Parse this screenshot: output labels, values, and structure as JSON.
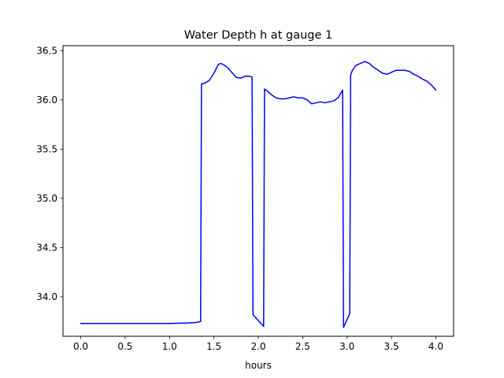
{
  "chart_data": {
    "type": "line",
    "title": "Water Depth h at gauge 1",
    "xlabel": "hours",
    "ylabel": "",
    "xlim": [
      -0.2,
      4.2
    ],
    "ylim": [
      33.6,
      36.55
    ],
    "xticks": [
      0.0,
      0.5,
      1.0,
      1.5,
      2.0,
      2.5,
      3.0,
      3.5,
      4.0
    ],
    "xtick_labels": [
      "0.0",
      "0.5",
      "1.0",
      "1.5",
      "2.0",
      "2.5",
      "3.0",
      "3.5",
      "4.0"
    ],
    "yticks": [
      34.0,
      34.5,
      35.0,
      35.5,
      36.0,
      36.5
    ],
    "ytick_labels": [
      "34.0",
      "34.5",
      "35.0",
      "35.5",
      "36.0",
      "36.5"
    ],
    "grid": false,
    "series": [
      {
        "color": "#0000ff",
        "x": [
          0.0,
          0.5,
          1.0,
          1.2,
          1.3,
          1.35,
          1.36,
          1.4,
          1.45,
          1.5,
          1.55,
          1.58,
          1.62,
          1.65,
          1.7,
          1.75,
          1.8,
          1.85,
          1.9,
          1.93,
          1.94,
          2.06,
          2.07,
          2.1,
          2.15,
          2.2,
          2.25,
          2.3,
          2.35,
          2.4,
          2.45,
          2.5,
          2.55,
          2.6,
          2.65,
          2.7,
          2.75,
          2.8,
          2.85,
          2.9,
          2.95,
          2.96,
          3.03,
          3.04,
          3.06,
          3.1,
          3.15,
          3.2,
          3.25,
          3.3,
          3.35,
          3.4,
          3.45,
          3.5,
          3.55,
          3.6,
          3.65,
          3.7,
          3.75,
          3.8,
          3.85,
          3.9,
          3.95,
          4.0
        ],
        "y": [
          33.73,
          33.73,
          33.73,
          33.735,
          33.74,
          33.75,
          36.16,
          36.17,
          36.2,
          36.27,
          36.36,
          36.37,
          36.35,
          36.33,
          36.28,
          36.23,
          36.22,
          36.24,
          36.24,
          36.23,
          33.82,
          33.7,
          36.11,
          36.09,
          36.05,
          36.02,
          36.01,
          36.01,
          36.02,
          36.03,
          36.02,
          36.02,
          36.0,
          35.96,
          35.97,
          35.98,
          35.97,
          35.98,
          35.99,
          36.02,
          36.1,
          33.69,
          33.83,
          36.25,
          36.3,
          36.35,
          36.37,
          36.39,
          36.37,
          36.33,
          36.3,
          36.27,
          36.26,
          36.28,
          36.3,
          36.3,
          36.3,
          36.29,
          36.26,
          36.24,
          36.21,
          36.19,
          36.15,
          36.1
        ]
      }
    ]
  }
}
